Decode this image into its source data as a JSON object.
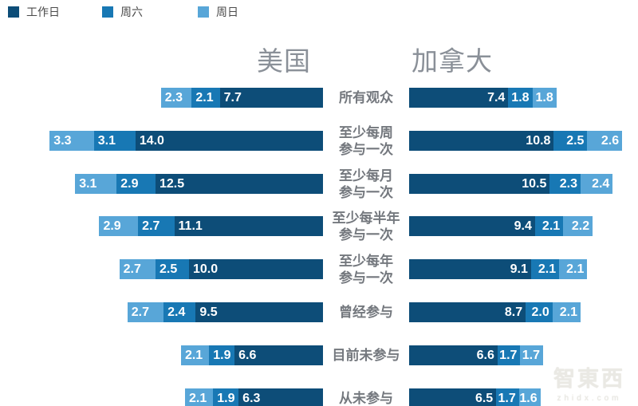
{
  "legend": {
    "items": [
      {
        "key": "workday",
        "label": "工作日"
      },
      {
        "key": "saturday",
        "label": "周六"
      },
      {
        "key": "sunday",
        "label": "周日"
      }
    ]
  },
  "titles": {
    "left": "美国",
    "right": "加拿大"
  },
  "colors": {
    "workday": "#0d4d78",
    "saturday": "#1878b4",
    "sunday": "#58a6d8",
    "title_text": "#8a9098",
    "category_text": "#74787e",
    "legend_text": "#4b4b4b",
    "value_text": "#ffffff",
    "watermark": "#eae9e4"
  },
  "watermark": {
    "line1": "智東西",
    "line2": "zhidx.com"
  },
  "chart_data": {
    "type": "bar",
    "variant": "diverging-stacked-horizontal",
    "title": "",
    "legend_entries": [
      "工作日",
      "周六",
      "周日"
    ],
    "left_group_title": "美国",
    "right_group_title": "加拿大",
    "left_segment_order": [
      "sunday",
      "saturday",
      "workday"
    ],
    "right_segment_order": [
      "workday",
      "saturday",
      "sunday"
    ],
    "categories": [
      "所有观众",
      "至少每周参与一次",
      "至少每月参与一次",
      "至少每半年参与一次",
      "至少每年参与一次",
      "曾经参与",
      "目前未参与",
      "从未参与"
    ],
    "rows": [
      {
        "label_lines": [
          "所有观众"
        ],
        "us": {
          "workday": "7.7",
          "saturday": "2.1",
          "sunday": "2.3"
        },
        "canada": {
          "workday": "7.4",
          "saturday": "1.8",
          "sunday": "1.8"
        }
      },
      {
        "label_lines": [
          "至少每周",
          "参与一次"
        ],
        "us": {
          "workday": "14.0",
          "saturday": "3.1",
          "sunday": "3.3"
        },
        "canada": {
          "workday": "10.8",
          "saturday": "2.5",
          "sunday": "2.6"
        }
      },
      {
        "label_lines": [
          "至少每月",
          "参与一次"
        ],
        "us": {
          "workday": "12.5",
          "saturday": "2.9",
          "sunday": "3.1"
        },
        "canada": {
          "workday": "10.5",
          "saturday": "2.3",
          "sunday": "2.4"
        }
      },
      {
        "label_lines": [
          "至少每半年",
          "参与一次"
        ],
        "us": {
          "workday": "11.1",
          "saturday": "2.7",
          "sunday": "2.9"
        },
        "canada": {
          "workday": "9.4",
          "saturday": "2.1",
          "sunday": "2.2"
        }
      },
      {
        "label_lines": [
          "至少每年",
          "参与一次"
        ],
        "us": {
          "workday": "10.0",
          "saturday": "2.5",
          "sunday": "2.7"
        },
        "canada": {
          "workday": "9.1",
          "saturday": "2.1",
          "sunday": "2.1"
        }
      },
      {
        "label_lines": [
          "曾经参与"
        ],
        "us": {
          "workday": "9.5",
          "saturday": "2.4",
          "sunday": "2.7"
        },
        "canada": {
          "workday": "8.7",
          "saturday": "2.0",
          "sunday": "2.1"
        }
      },
      {
        "label_lines": [
          "目前未参与"
        ],
        "us": {
          "workday": "6.6",
          "saturday": "1.9",
          "sunday": "2.1"
        },
        "canada": {
          "workday": "6.6",
          "saturday": "1.7",
          "sunday": "1.7"
        }
      },
      {
        "label_lines": [
          "从未参与"
        ],
        "us": {
          "workday": "6.3",
          "saturday": "1.9",
          "sunday": "2.1"
        },
        "canada": {
          "workday": "6.5",
          "saturday": "1.7",
          "sunday": "1.6"
        }
      }
    ]
  }
}
